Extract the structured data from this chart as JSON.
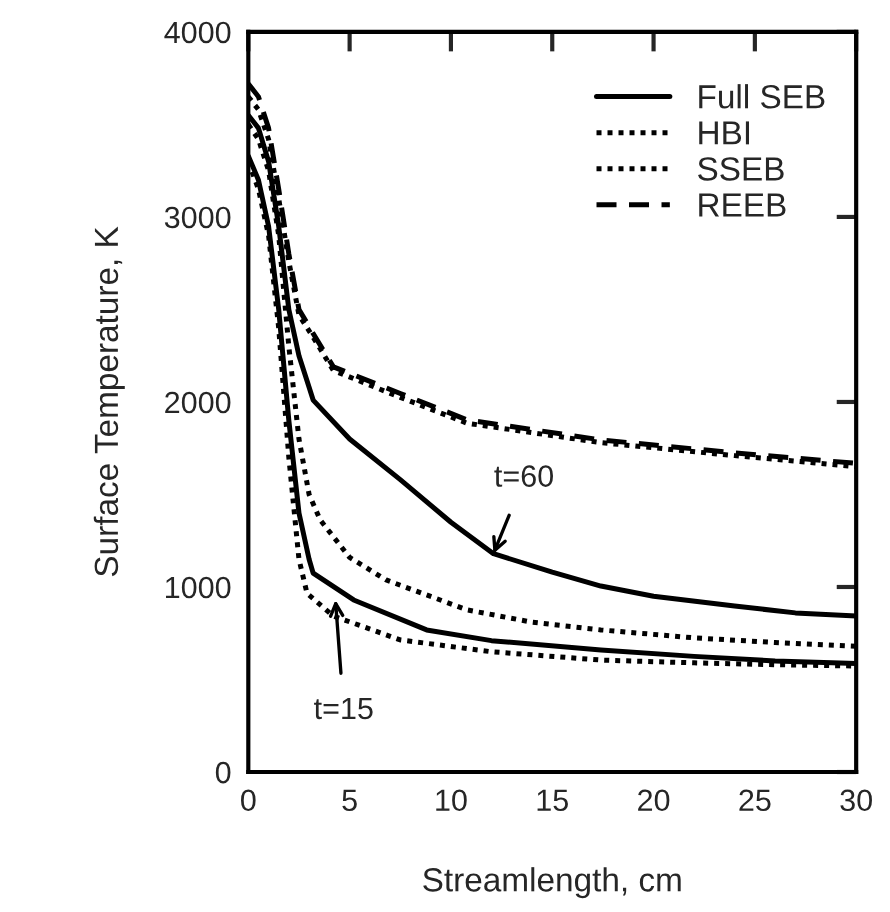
{
  "chart_data": {
    "type": "line",
    "xlabel": "Streamlength, cm",
    "ylabel": "Surface Temperature, K",
    "xlim": [
      0,
      30
    ],
    "ylim": [
      0,
      4000
    ],
    "xticks": [
      0,
      5,
      10,
      15,
      20,
      25,
      30
    ],
    "yticks": [
      0,
      1000,
      2000,
      3000,
      4000
    ],
    "grid": false,
    "legend": "top right",
    "marker": "none",
    "series": [
      {
        "name": "Full SEB",
        "color": "#000000",
        "line_style": "solid",
        "x": [
          0,
          0.5,
          1,
          1.5,
          2,
          2.5,
          3,
          3.2,
          5,
          7.5,
          10,
          12.1,
          15,
          17.4,
          20,
          24,
          27,
          30
        ],
        "values": [
          3550,
          3480,
          3300,
          2950,
          2500,
          2250,
          2080,
          2010,
          1800,
          1580,
          1350,
          1180,
          1080,
          1005,
          950,
          897,
          860,
          843
        ]
      },
      {
        "color": "#000000",
        "line_style": "solid",
        "x": [
          0,
          0.5,
          1,
          1.5,
          2,
          2.5,
          3,
          3.2,
          5.2,
          8.8,
          12,
          17.4,
          22,
          26,
          30
        ],
        "values": [
          3330,
          3200,
          2950,
          2500,
          1900,
          1400,
          1150,
          1075,
          930,
          768,
          710,
          660,
          625,
          600,
          587
        ]
      },
      {
        "name": "HBI",
        "color": "#000000",
        "line_style": "dotted",
        "x": [
          0,
          0.5,
          1,
          1.5,
          2,
          2.5,
          3,
          3.55,
          5,
          6.8,
          10.8,
          14,
          17.4,
          22,
          26,
          30
        ],
        "values": [
          3500,
          3420,
          3250,
          2900,
          2300,
          1800,
          1500,
          1362,
          1160,
          1038,
          876,
          810,
          768,
          725,
          700,
          680
        ]
      },
      {
        "color": "#000000",
        "line_style": "dotted",
        "x": [
          0,
          0.5,
          1,
          1.5,
          2,
          2.5,
          2.9,
          4.2,
          7.5,
          12,
          17.4,
          22,
          26,
          30
        ],
        "values": [
          3300,
          3150,
          2900,
          2400,
          1700,
          1150,
          965,
          843,
          714,
          650,
          605,
          590,
          580,
          573
        ]
      },
      {
        "name": "SSEB",
        "color": "#000000",
        "line_style": "dotted",
        "x": [
          0,
          0.5,
          1,
          1.5,
          2,
          2.5,
          3.2,
          4.2,
          7.5,
          10.8,
          17.4,
          24,
          30
        ],
        "values": [
          3650,
          3580,
          3420,
          3100,
          2760,
          2470,
          2350,
          2170,
          2025,
          1885,
          1780,
          1710,
          1650
        ]
      },
      {
        "name": "REEB",
        "color": "#000000",
        "line_style": "dashed",
        "x": [
          0,
          0.5,
          1,
          1.5,
          2,
          2.5,
          3.2,
          4.2,
          7.5,
          10.8,
          17.4,
          24,
          30
        ],
        "values": [
          3720,
          3650,
          3480,
          3150,
          2800,
          2500,
          2370,
          2190,
          2046,
          1903,
          1795,
          1725,
          1668
        ]
      }
    ],
    "annotations": [
      {
        "text": "t=60",
        "x": 12.1,
        "y": 1180
      },
      {
        "text": "t=15",
        "x": 4.3,
        "y": 930
      }
    ]
  }
}
